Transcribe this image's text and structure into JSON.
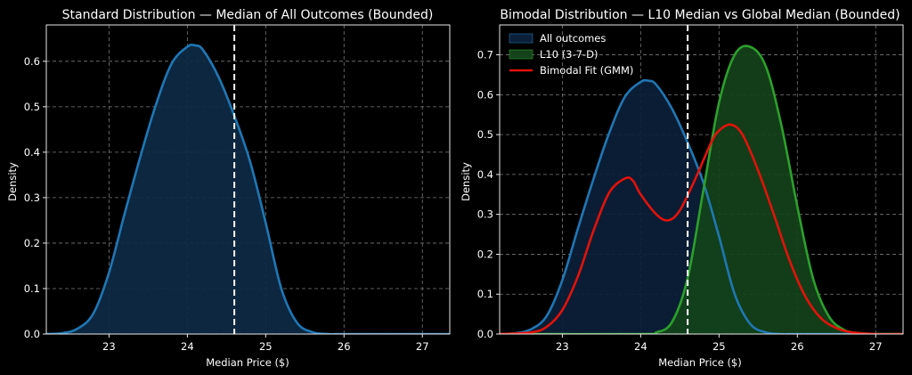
{
  "chart_data": [
    {
      "type": "area",
      "title": "Standard Distribution — Median of All Outcomes (Bounded)",
      "xlabel": "Median Price ($)",
      "ylabel": "Density",
      "xlim": [
        22.2,
        27.35
      ],
      "ylim": [
        0,
        0.68
      ],
      "xticks": [
        23,
        24,
        25,
        26,
        27
      ],
      "yticks": [
        0.0,
        0.1,
        0.2,
        0.3,
        0.4,
        0.5,
        0.6
      ],
      "ytick_labels": [
        "0.0",
        "0.1",
        "0.2",
        "0.3",
        "0.4",
        "0.5",
        "0.6"
      ],
      "grid": true,
      "median_line": 24.6,
      "series": [
        {
          "name": "All outcomes",
          "color": "#1f77b4",
          "fill": "#0e2a45",
          "x": [
            22.2,
            22.4,
            22.6,
            22.8,
            23.0,
            23.2,
            23.4,
            23.6,
            23.8,
            24.0,
            24.1,
            24.2,
            24.4,
            24.6,
            24.8,
            25.0,
            25.2,
            25.4,
            25.6,
            25.8,
            26.0,
            26.5,
            27.0,
            27.35
          ],
          "values": [
            0.0,
            0.002,
            0.012,
            0.045,
            0.135,
            0.265,
            0.39,
            0.505,
            0.595,
            0.632,
            0.635,
            0.625,
            0.565,
            0.48,
            0.38,
            0.245,
            0.1,
            0.025,
            0.004,
            0.0,
            0.0,
            0.0,
            0.0,
            0.0
          ]
        }
      ]
    },
    {
      "type": "area",
      "title": "Bimodal Distribution — L10 Median vs Global Median (Bounded)",
      "xlabel": "Median Price ($)",
      "ylabel": "Density",
      "xlim": [
        22.2,
        27.35
      ],
      "ylim": [
        0,
        0.775
      ],
      "xticks": [
        23,
        24,
        25,
        26,
        27
      ],
      "yticks": [
        0.0,
        0.1,
        0.2,
        0.3,
        0.4,
        0.5,
        0.6,
        0.7
      ],
      "ytick_labels": [
        "0.0",
        "0.1",
        "0.2",
        "0.3",
        "0.4",
        "0.5",
        "0.6",
        "0.7"
      ],
      "grid": true,
      "median_line": 24.6,
      "legend": "top-left",
      "series": [
        {
          "name": "All outcomes",
          "color": "#1f77b4",
          "fill": "#0c1f38",
          "x": [
            22.2,
            22.4,
            22.6,
            22.8,
            23.0,
            23.2,
            23.4,
            23.6,
            23.8,
            24.0,
            24.1,
            24.2,
            24.4,
            24.6,
            24.8,
            25.0,
            25.2,
            25.4,
            25.6,
            25.8,
            26.0,
            26.5,
            27.0,
            27.35
          ],
          "values": [
            0.0,
            0.002,
            0.012,
            0.045,
            0.135,
            0.265,
            0.39,
            0.505,
            0.595,
            0.632,
            0.635,
            0.625,
            0.565,
            0.48,
            0.38,
            0.245,
            0.1,
            0.025,
            0.004,
            0.0,
            0.0,
            0.0,
            0.0,
            0.0
          ]
        },
        {
          "name": "L10 (3-7-D)",
          "color": "#2ca02c",
          "fill": "#14421a",
          "x": [
            22.2,
            24.0,
            24.2,
            24.4,
            24.6,
            24.8,
            25.0,
            25.2,
            25.4,
            25.6,
            25.8,
            26.0,
            26.2,
            26.4,
            26.6,
            26.8,
            27.0,
            27.35
          ],
          "values": [
            0.0,
            0.0,
            0.004,
            0.03,
            0.14,
            0.36,
            0.58,
            0.7,
            0.72,
            0.67,
            0.52,
            0.32,
            0.14,
            0.045,
            0.01,
            0.002,
            0.0,
            0.0
          ]
        },
        {
          "name": "Bimodal Fit (GMM)",
          "color": "#e3120b",
          "x": [
            22.2,
            22.6,
            22.8,
            23.0,
            23.2,
            23.4,
            23.6,
            23.8,
            23.9,
            24.0,
            24.2,
            24.35,
            24.5,
            24.7,
            24.9,
            25.0,
            25.15,
            25.3,
            25.5,
            25.7,
            25.9,
            26.1,
            26.3,
            26.5,
            26.7,
            27.0,
            27.35
          ],
          "values": [
            0.0,
            0.004,
            0.018,
            0.06,
            0.145,
            0.26,
            0.355,
            0.39,
            0.385,
            0.35,
            0.3,
            0.285,
            0.31,
            0.39,
            0.48,
            0.51,
            0.525,
            0.5,
            0.41,
            0.3,
            0.185,
            0.095,
            0.04,
            0.015,
            0.004,
            0.0,
            0.0
          ]
        }
      ]
    }
  ]
}
